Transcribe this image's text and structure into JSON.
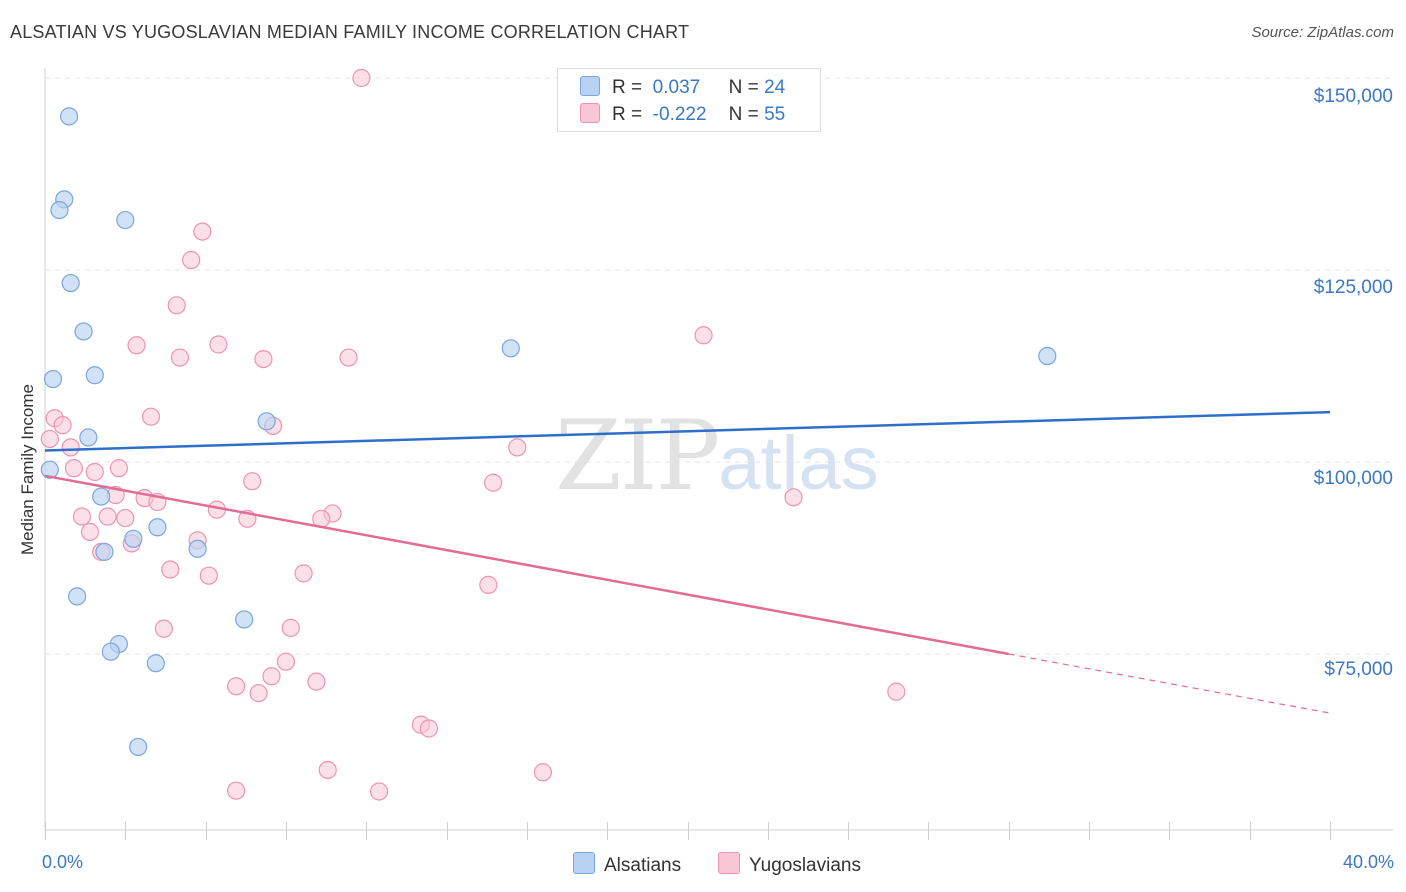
{
  "title": "ALSATIAN VS YUGOSLAVIAN MEDIAN FAMILY INCOME CORRELATION CHART",
  "source": "Source: ZipAtlas.com",
  "watermark": {
    "zip": "ZIP",
    "atlas": "atlas"
  },
  "legend": {
    "rows": [
      {
        "r_label": "R =",
        "r_value": "0.037",
        "n_label": "N =",
        "n_value": "24"
      },
      {
        "r_label": "R =",
        "r_value": "-0.222",
        "n_label": "N =",
        "n_value": "55"
      }
    ]
  },
  "bottom_legend": [
    "Alsatians",
    "Yugoslavians"
  ],
  "colors": {
    "blue_fill": "#b9d2f3",
    "blue_stroke": "#7aa6de",
    "blue_line": "#2e6fca",
    "pink_fill": "#f9c6d6",
    "pink_stroke": "#ee93b1",
    "pink_line": "#e46b96",
    "axis_text": "#3b78c4",
    "grid": "#e3e3e3"
  },
  "chart_data": {
    "type": "scatter",
    "title": "ALSATIAN VS YUGOSLAVIAN MEDIAN FAMILY INCOME CORRELATION CHART",
    "xlabel": "",
    "ylabel": "Median Family Income",
    "xlim": [
      0,
      40
    ],
    "ylim": [
      52000,
      153000
    ],
    "x_tick_labels": [
      "0.0%",
      "40.0%"
    ],
    "y_ticks": [
      {
        "value": 150000,
        "label": "$150,000"
      },
      {
        "value": 125000,
        "label": "$125,000"
      },
      {
        "value": 100000,
        "label": "$100,000"
      },
      {
        "value": 75000,
        "label": "$75,000"
      }
    ],
    "grid": true,
    "legend_position": "top-center",
    "series": [
      {
        "name": "Alsatians",
        "color": "blue",
        "r": 0.037,
        "n": 24,
        "trend": {
          "x": [
            0,
            40
          ],
          "y": [
            101500,
            106500
          ]
        },
        "points": [
          [
            0.75,
            145000
          ],
          [
            0.6,
            134200
          ],
          [
            0.45,
            132800
          ],
          [
            2.5,
            131500
          ],
          [
            0.8,
            123300
          ],
          [
            1.2,
            117000
          ],
          [
            1.55,
            111300
          ],
          [
            0.25,
            110800
          ],
          [
            14.5,
            114800
          ],
          [
            31.2,
            113800
          ],
          [
            6.9,
            105300
          ],
          [
            1.35,
            103200
          ],
          [
            0.15,
            99000
          ],
          [
            1.75,
            95500
          ],
          [
            3.5,
            91500
          ],
          [
            2.75,
            90000
          ],
          [
            4.75,
            88700
          ],
          [
            1.85,
            88300
          ],
          [
            1.0,
            82500
          ],
          [
            6.2,
            79500
          ],
          [
            2.3,
            76300
          ],
          [
            2.05,
            75300
          ],
          [
            3.45,
            73800
          ],
          [
            2.9,
            62900
          ]
        ]
      },
      {
        "name": "Yugoslavians",
        "color": "pink",
        "r": -0.222,
        "n": 55,
        "trend": {
          "x": [
            0,
            30
          ],
          "y": [
            98200,
            75000
          ]
        },
        "trend_dashed": {
          "x": [
            30,
            40
          ],
          "y": [
            75000,
            67300
          ]
        },
        "points": [
          [
            9.85,
            150000
          ],
          [
            4.9,
            130000
          ],
          [
            4.55,
            126300
          ],
          [
            4.1,
            120400
          ],
          [
            20.5,
            116500
          ],
          [
            2.85,
            115200
          ],
          [
            5.4,
            115300
          ],
          [
            4.2,
            113600
          ],
          [
            6.8,
            113400
          ],
          [
            9.45,
            113600
          ],
          [
            0.3,
            105700
          ],
          [
            3.3,
            105900
          ],
          [
            0.55,
            104800
          ],
          [
            7.1,
            104700
          ],
          [
            0.8,
            101900
          ],
          [
            14.7,
            101900
          ],
          [
            0.15,
            103000
          ],
          [
            0.9,
            99200
          ],
          [
            1.55,
            98700
          ],
          [
            2.3,
            99200
          ],
          [
            6.45,
            97500
          ],
          [
            13.95,
            97300
          ],
          [
            2.2,
            95700
          ],
          [
            3.1,
            95300
          ],
          [
            3.5,
            94800
          ],
          [
            23.3,
            95400
          ],
          [
            5.35,
            93800
          ],
          [
            8.95,
            93300
          ],
          [
            1.15,
            92900
          ],
          [
            1.95,
            92900
          ],
          [
            2.5,
            92700
          ],
          [
            6.3,
            92600
          ],
          [
            8.6,
            92600
          ],
          [
            1.4,
            90900
          ],
          [
            4.75,
            89800
          ],
          [
            2.7,
            89400
          ],
          [
            1.75,
            88300
          ],
          [
            3.9,
            86000
          ],
          [
            5.1,
            85200
          ],
          [
            8.05,
            85500
          ],
          [
            13.8,
            84000
          ],
          [
            3.7,
            78300
          ],
          [
            7.65,
            78400
          ],
          [
            7.5,
            74000
          ],
          [
            7.05,
            72100
          ],
          [
            8.45,
            71400
          ],
          [
            5.95,
            70800
          ],
          [
            6.65,
            69900
          ],
          [
            26.5,
            70100
          ],
          [
            11.7,
            65800
          ],
          [
            11.95,
            65300
          ],
          [
            8.8,
            59900
          ],
          [
            15.5,
            59600
          ],
          [
            5.95,
            57200
          ],
          [
            10.4,
            57100
          ]
        ]
      }
    ]
  }
}
